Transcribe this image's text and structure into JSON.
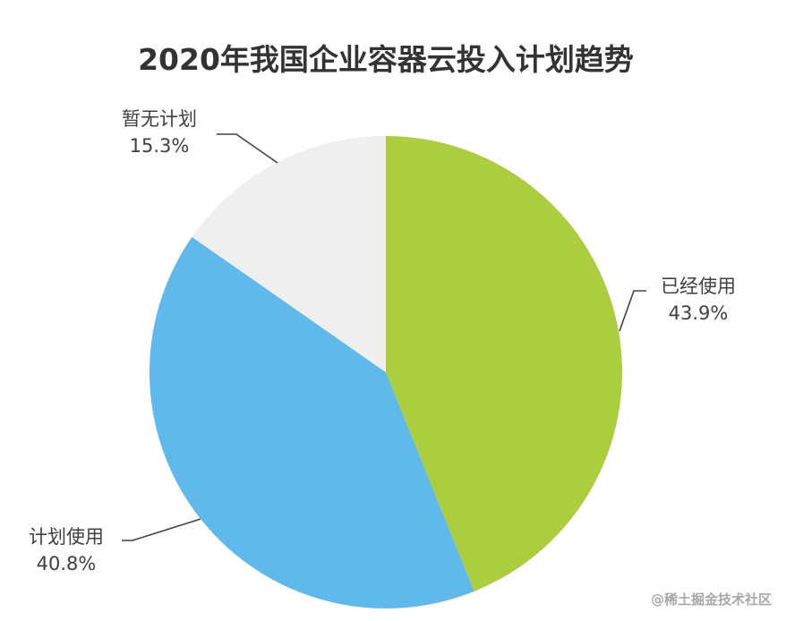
{
  "chart_data": {
    "type": "pie",
    "title": "2020年我国企业容器云投入计划趋势",
    "slices": [
      {
        "label": "已经使用",
        "value": 43.9,
        "value_label": "43.9%",
        "color": "#abcd3e"
      },
      {
        "label": "计划使用",
        "value": 40.8,
        "value_label": "40.8%",
        "color": "#60b9eb"
      },
      {
        "label": "暂无计划",
        "value": 15.3,
        "value_label": "15.3%",
        "color": "#efefef"
      }
    ],
    "start_angle": "12 o'clock",
    "direction": "clockwise"
  },
  "watermark": "@稀土掘金技术社区"
}
